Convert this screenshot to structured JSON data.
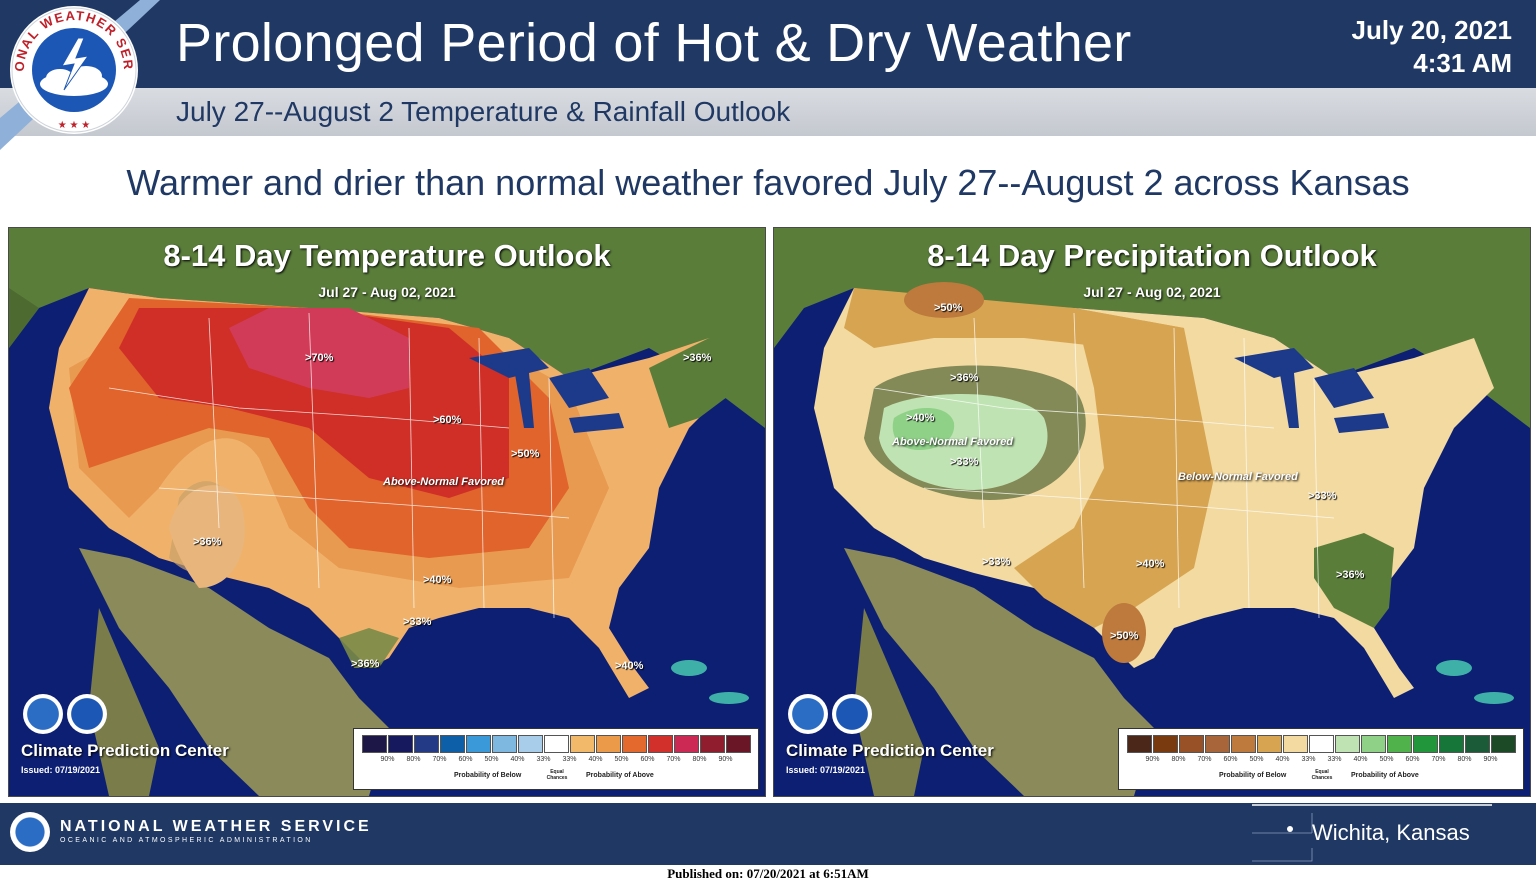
{
  "header": {
    "title": "Prolonged Period of Hot & Dry Weather",
    "date": "July 20, 2021",
    "time": "4:31 AM",
    "subtitle": "July 27--August 2 Temperature & Rainfall Outlook",
    "logo_text": "NATIONAL WEATHER SERVICE"
  },
  "headline": "Warmer and drier than normal weather favored July 27--August 2 across Kansas",
  "temperature_panel": {
    "title": "8-14 Day Temperature Outlook",
    "dates": "Jul 27 - Aug 02, 2021",
    "favored_label": "Above-Normal Favored",
    "probability_labels": [
      ">70%",
      ">60%",
      ">50%",
      ">40%",
      ">33%",
      ">36%",
      ">36%",
      ">36%",
      ">40%"
    ],
    "center_name": "Climate Prediction Center",
    "issued": "Issued: 07/19/2021",
    "legend": {
      "values": [
        "90%",
        "80%",
        "70%",
        "60%",
        "50%",
        "40%",
        "33%",
        "33%",
        "40%",
        "50%",
        "60%",
        "70%",
        "80%",
        "90%"
      ],
      "colors": [
        "#1c1747",
        "#16195e",
        "#233a86",
        "#0d5fa8",
        "#3a9ad9",
        "#7eb7e0",
        "#a8cdea",
        "#ffffff",
        "#f3b96a",
        "#eb9a4a",
        "#e36a2c",
        "#d2302a",
        "#cc2a55",
        "#8f1d2e",
        "#6b1626"
      ],
      "below_label": "Probability of Below",
      "equal_label": "Equal Chances",
      "above_label": "Probability of Above"
    }
  },
  "precipitation_panel": {
    "title": "8-14 Day Precipitation Outlook",
    "dates": "Jul 27 - Aug 02, 2021",
    "above_label": "Above-Normal Favored",
    "below_label": "Below-Normal Favored",
    "probability_labels": [
      ">50%",
      ">36%",
      ">40%",
      ">33%",
      ">33%",
      ">40%",
      ">50%",
      ">33%",
      ">36%"
    ],
    "center_name": "Climate Prediction Center",
    "issued": "Issued: 07/19/2021",
    "legend": {
      "values": [
        "90%",
        "80%",
        "70%",
        "60%",
        "50%",
        "40%",
        "33%",
        "33%",
        "40%",
        "50%",
        "60%",
        "70%",
        "80%",
        "90%"
      ],
      "colors": [
        "#4a2719",
        "#7a3a0f",
        "#985026",
        "#a8653a",
        "#bd7a3c",
        "#d7a552",
        "#f3daa1",
        "#ffffff",
        "#bfe3b2",
        "#8ed187",
        "#4fb24a",
        "#21963a",
        "#16763a",
        "#1b5b38",
        "#1d4a26"
      ],
      "below_label": "Probability of Below",
      "equal_label": "Equal Chances",
      "above_label": "Probability of Above"
    }
  },
  "footer": {
    "agency": "NATIONAL WEATHER SERVICE",
    "parent": "OCEANIC AND ATMOSPHERIC ADMINISTRATION",
    "office": "Wichita, Kansas",
    "published": "Published on: 07/20/2021 at 6:51AM"
  }
}
